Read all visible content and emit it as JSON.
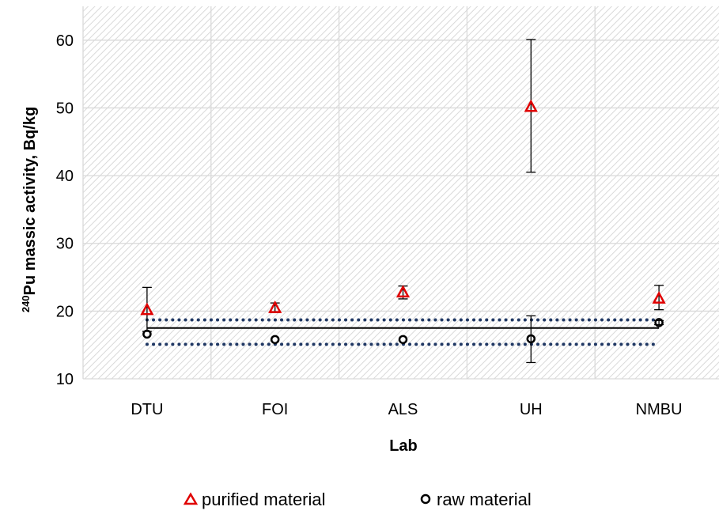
{
  "chart_data": {
    "type": "scatter",
    "title": "",
    "xlabel": "Lab",
    "ylabel_sup": "240",
    "ylabel_main": "Pu massic activity, Bq/kg",
    "categories": [
      "DTU",
      "FOI",
      "ALS",
      "UH",
      "NMBU"
    ],
    "ylim": [
      10,
      65
    ],
    "yticks": [
      10,
      20,
      30,
      40,
      50,
      60
    ],
    "grid": true,
    "legend_position": "bottom",
    "series": [
      {
        "name": "purified material",
        "marker": "triangle",
        "color": "#e00000",
        "values": [
          20.2,
          20.5,
          22.8,
          50.2,
          21.9
        ],
        "error_low": [
          17.0,
          19.8,
          21.8,
          40.5,
          20.2
        ],
        "error_high": [
          23.5,
          21.2,
          23.7,
          60.1,
          23.8
        ]
      },
      {
        "name": "raw material",
        "marker": "circle",
        "color": "#000000",
        "values": [
          16.6,
          15.8,
          15.8,
          15.9,
          18.3
        ],
        "error_low": [
          16.6,
          15.8,
          15.8,
          12.4,
          18.0
        ],
        "error_high": [
          16.6,
          15.8,
          15.8,
          19.3,
          18.6
        ]
      }
    ],
    "reference": {
      "value": 17.5,
      "upper": 18.7,
      "lower": 15.1,
      "line_color": "#000000",
      "bound_color": "#203864"
    }
  }
}
